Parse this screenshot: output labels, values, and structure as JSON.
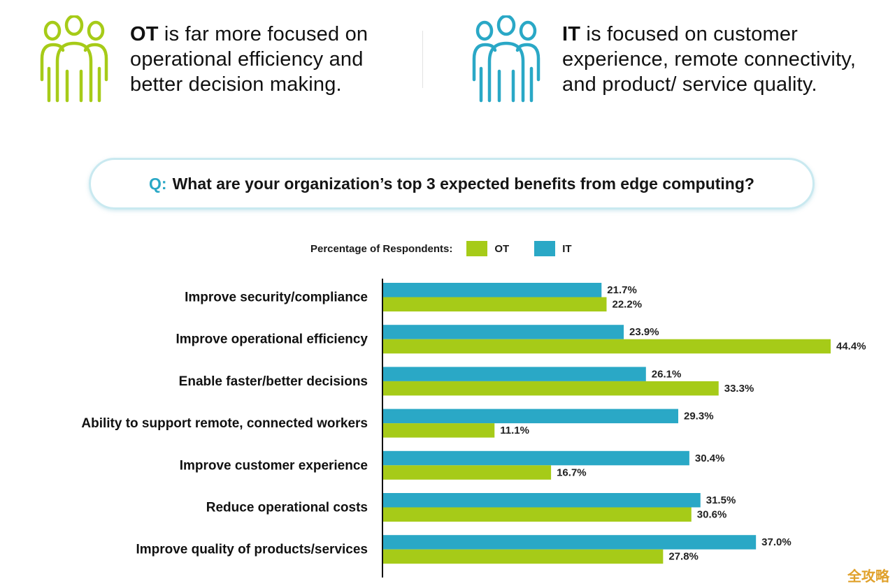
{
  "colors": {
    "ot": "#a6cb18",
    "it": "#2aa8c6",
    "axis": "#111111"
  },
  "headers": {
    "ot": {
      "icon": "people-group-icon",
      "bold": "OT",
      "lines": [
        " is far more focused on",
        "operational efficiency and",
        "better decision making."
      ]
    },
    "it": {
      "icon": "people-group-icon",
      "bold": "IT",
      "lines": [
        " is focused on customer",
        "experience, remote connectivity,",
        "and product/ service quality."
      ]
    }
  },
  "question": {
    "prefix": "Q:",
    "text": "What are your organization’s top 3 expected benefits from edge computing?"
  },
  "legend": {
    "label": "Percentage of Respondents:",
    "ot": "OT",
    "it": "IT"
  },
  "chart_data": {
    "type": "bar",
    "orientation": "horizontal",
    "title": "What are your organization’s top 3 expected benefits from edge computing?",
    "xlabel": "Percentage of Respondents",
    "xlim": [
      0,
      44.4
    ],
    "categories": [
      "Improve security/compliance",
      "Improve operational efficiency",
      "Enable faster/better decisions",
      "Ability to support remote, connected workers",
      "Improve customer experience",
      "Reduce operational costs",
      "Improve quality of products/services"
    ],
    "series": [
      {
        "name": "IT",
        "values": [
          21.7,
          23.9,
          26.1,
          29.3,
          30.4,
          31.5,
          37.0
        ],
        "labels": [
          "21.7%",
          "23.9%",
          "26.1%",
          "29.3%",
          "30.4%",
          "31.5%",
          "37.0%"
        ]
      },
      {
        "name": "OT",
        "values": [
          22.2,
          44.4,
          33.3,
          11.1,
          16.7,
          30.6,
          27.8
        ],
        "labels": [
          "22.2%",
          "44.4%",
          "33.3%",
          "11.1%",
          "16.7%",
          "30.6%",
          "27.8%"
        ]
      }
    ],
    "legend": "top"
  },
  "watermark": "全攻略"
}
